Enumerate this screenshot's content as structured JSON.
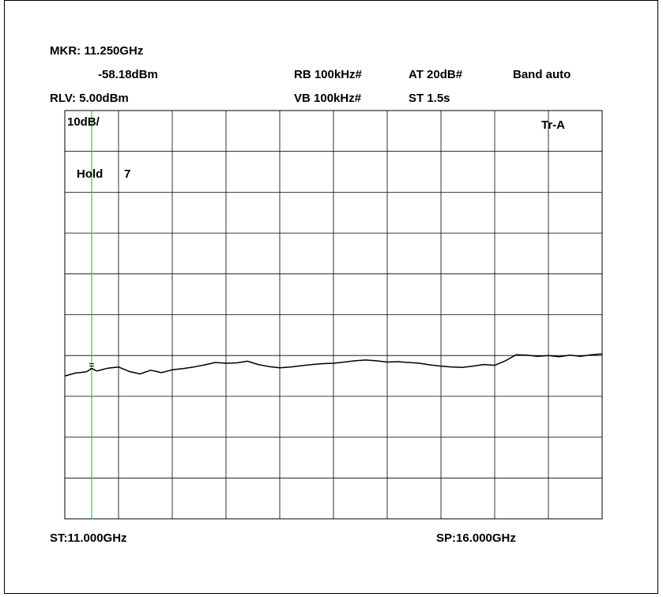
{
  "header": {
    "marker_label": "MKR: 11.250GHz",
    "marker_level": "-58.18dBm",
    "ref_level": "RLV: 5.00dBm",
    "rbw": "RB 100kHz#",
    "vbw": "VB 100kHz#",
    "attenuation": "AT 20dB#",
    "sweep_time": "ST 1.5s",
    "band": "Band auto"
  },
  "grid_labels": {
    "scale": "10dB/",
    "trace": "Tr-A",
    "hold_label": "Hold",
    "hold_count": "7"
  },
  "footer": {
    "start_freq": "ST:11.000GHz",
    "stop_freq": "SP:16.000GHz"
  },
  "colors": {
    "marker_line": "#33cc33",
    "trace": "#000000",
    "grid": "#000000"
  },
  "chart_data": {
    "type": "line",
    "x_unit": "GHz",
    "y_unit": "dBm",
    "xlim": [
      11.0,
      16.0
    ],
    "ylim": [
      -95,
      5
    ],
    "y_division_db": 10,
    "grid": true,
    "marker": {
      "x": 11.25,
      "y": -58.18
    },
    "series": [
      {
        "values_x": [
          11.0,
          11.1,
          11.2,
          11.25,
          11.3,
          11.4,
          11.5,
          11.6,
          11.7,
          11.8,
          11.9,
          12.0,
          12.1,
          12.2,
          12.3,
          12.4,
          12.5,
          12.6,
          12.7,
          12.8,
          12.9,
          13.0,
          13.1,
          13.2,
          13.3,
          13.4,
          13.5,
          13.6,
          13.7,
          13.8,
          13.9,
          14.0,
          14.1,
          14.2,
          14.3,
          14.4,
          14.5,
          14.6,
          14.7,
          14.8,
          14.9,
          15.0,
          15.1,
          15.2,
          15.3,
          15.4,
          15.5,
          15.6,
          15.7,
          15.8,
          15.9,
          16.0
        ],
        "values_y": [
          -60.0,
          -59.3,
          -59.0,
          -58.2,
          -58.8,
          -58.1,
          -57.8,
          -58.9,
          -59.5,
          -58.6,
          -59.2,
          -58.5,
          -58.2,
          -57.8,
          -57.3,
          -56.7,
          -56.9,
          -56.8,
          -56.4,
          -57.2,
          -57.7,
          -58.0,
          -57.8,
          -57.5,
          -57.2,
          -57.0,
          -56.9,
          -56.6,
          -56.3,
          -56.1,
          -56.3,
          -56.6,
          -56.5,
          -56.7,
          -56.9,
          -57.3,
          -57.6,
          -57.8,
          -57.9,
          -57.6,
          -57.2,
          -57.4,
          -56.3,
          -54.8,
          -54.9,
          -55.2,
          -55.0,
          -55.3,
          -54.9,
          -55.2,
          -54.8,
          -54.6
        ]
      }
    ]
  }
}
